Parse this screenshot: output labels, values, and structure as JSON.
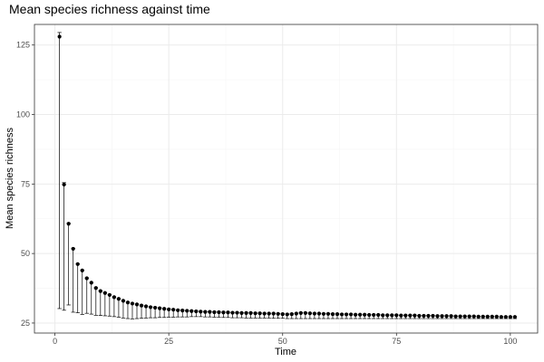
{
  "chart_data": {
    "type": "scatter",
    "title": "Mean species richness against time",
    "xlabel": "Time",
    "ylabel": "Mean species richness",
    "xlim": [
      -4.5,
      106
    ],
    "ylim": [
      21.4,
      132.4
    ],
    "x_ticks": [
      0,
      25,
      50,
      75,
      100
    ],
    "x_tick_labels": [
      "0",
      "25",
      "50",
      "75",
      "100"
    ],
    "y_ticks": [
      25,
      50,
      75,
      100,
      125
    ],
    "y_tick_labels": [
      "25",
      "50",
      "75",
      "100",
      "125"
    ],
    "grid": true,
    "legend": "none",
    "x": [
      1,
      2,
      3,
      4,
      5,
      6,
      7,
      8,
      9,
      10,
      11,
      12,
      13,
      14,
      15,
      16,
      17,
      18,
      19,
      20,
      21,
      22,
      23,
      24,
      25,
      26,
      27,
      28,
      29,
      30,
      31,
      32,
      33,
      34,
      35,
      36,
      37,
      38,
      39,
      40,
      41,
      42,
      43,
      44,
      45,
      46,
      47,
      48,
      49,
      50,
      51,
      52,
      53,
      54,
      55,
      56,
      57,
      58,
      59,
      60,
      61,
      62,
      63,
      64,
      65,
      66,
      67,
      68,
      69,
      70,
      71,
      72,
      73,
      74,
      75,
      76,
      77,
      78,
      79,
      80,
      81,
      82,
      83,
      84,
      85,
      86,
      87,
      88,
      89,
      90,
      91,
      92,
      93,
      94,
      95,
      96,
      97,
      98,
      99,
      100,
      101
    ],
    "y": [
      128,
      74.8,
      60.7,
      51.7,
      46.2,
      43.9,
      41.1,
      39.5,
      37.6,
      36.5,
      35.8,
      35.1,
      34.3,
      33.7,
      33.0,
      32.4,
      32.0,
      31.7,
      31.3,
      31.0,
      30.7,
      30.5,
      30.3,
      30.1,
      29.9,
      29.8,
      29.6,
      29.5,
      29.4,
      29.3,
      29.2,
      29.1,
      29.0,
      29.0,
      28.9,
      28.9,
      28.8,
      28.8,
      28.7,
      28.7,
      28.6,
      28.6,
      28.6,
      28.5,
      28.5,
      28.4,
      28.4,
      28.4,
      28.3,
      28.2,
      28.1,
      28.2,
      28.4,
      28.6,
      28.6,
      28.5,
      28.4,
      28.4,
      28.3,
      28.3,
      28.2,
      28.2,
      28.1,
      28.1,
      28.1,
      28.0,
      28.0,
      28.0,
      27.9,
      27.9,
      27.9,
      27.8,
      27.8,
      27.8,
      27.8,
      27.7,
      27.7,
      27.7,
      27.7,
      27.6,
      27.6,
      27.6,
      27.6,
      27.5,
      27.5,
      27.5,
      27.5,
      27.4,
      27.4,
      27.4,
      27.4,
      27.4,
      27.3,
      27.3,
      27.3,
      27.3,
      27.3,
      27.2,
      27.2,
      27.2,
      27.2
    ],
    "y_upper": [
      129.5,
      75.5,
      60.9,
      51.8,
      46.3,
      44.0,
      41.2,
      39.6,
      37.7,
      36.6,
      35.9,
      35.2,
      34.4,
      33.8,
      33.1,
      32.5,
      32.1,
      31.8,
      31.4,
      31.1,
      30.8,
      30.6,
      30.4,
      30.2,
      30.0,
      29.9,
      29.7,
      29.6,
      29.5,
      29.4,
      29.3,
      29.2,
      29.1,
      29.1,
      29.0,
      29.0,
      28.9,
      28.9,
      28.8,
      28.8,
      28.7,
      28.7,
      28.7,
      28.6,
      28.6,
      28.5,
      28.5,
      28.5,
      28.4,
      28.3,
      28.2,
      28.3,
      28.5,
      28.7,
      28.7,
      28.6,
      28.5,
      28.5,
      28.4,
      28.4,
      28.3,
      28.3,
      28.2,
      28.2,
      28.2,
      28.1,
      28.1,
      28.1,
      28.0,
      28.0,
      28.0,
      27.9,
      27.9,
      27.9,
      27.9,
      27.8,
      27.8,
      27.8,
      27.8,
      27.7,
      27.7,
      27.7,
      27.7,
      27.6,
      27.6,
      27.6,
      27.6,
      27.5,
      27.5,
      27.5,
      27.5,
      27.5,
      27.4,
      27.4,
      27.4,
      27.4,
      27.4,
      27.3,
      27.3,
      27.3,
      27.3
    ],
    "y_lower": [
      30.2,
      29.6,
      31.5,
      28.9,
      28.7,
      28.1,
      28.5,
      28.2,
      27.8,
      27.7,
      27.6,
      27.5,
      27.3,
      27.1,
      26.8,
      26.6,
      26.5,
      26.6,
      26.7,
      26.8,
      26.9,
      26.9,
      27.0,
      27.0,
      27.1,
      27.1,
      27.2,
      27.2,
      27.2,
      27.3,
      27.3,
      27.3,
      27.2,
      27.2,
      27.1,
      27.1,
      27.0,
      27.0,
      26.9,
      26.9,
      26.9,
      26.8,
      26.8,
      26.8,
      26.8,
      26.8,
      26.8,
      26.7,
      26.7,
      26.7,
      26.6,
      26.6,
      26.6,
      26.6,
      26.6,
      26.6,
      26.6,
      26.6,
      26.6,
      26.6,
      26.6,
      26.6,
      26.6,
      26.6,
      26.6,
      26.6,
      26.6,
      26.6,
      26.6,
      26.6,
      26.6,
      26.6,
      26.6,
      26.6,
      26.6,
      26.6,
      26.6,
      26.6,
      26.6,
      26.6,
      26.6,
      26.6,
      26.6,
      26.6,
      26.6,
      26.6,
      26.6,
      26.6,
      26.6,
      26.6,
      26.6,
      26.6,
      26.6,
      26.6,
      26.6,
      26.6,
      26.6,
      26.6,
      26.6,
      26.6,
      26.6
    ],
    "colors": {
      "point": "#000000",
      "errorbar": "#000000",
      "panel_border": "#333333",
      "grid_major": "#ebebeb",
      "grid_minor": "#f5f5f5",
      "tick_text": "#4d4d4d"
    }
  }
}
